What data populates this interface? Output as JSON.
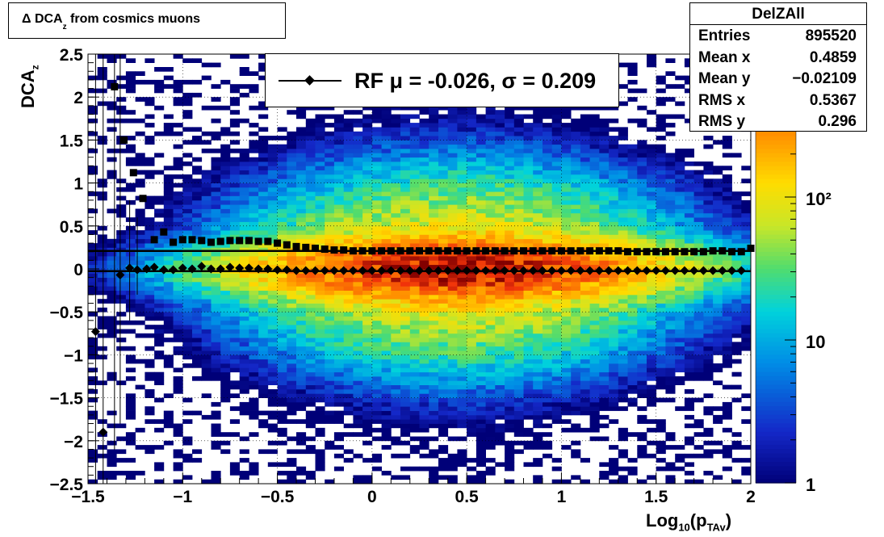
{
  "title": "Δ DCA",
  "title_sub": "z",
  "title_rest": " from cosmics muons",
  "stats": {
    "name": "DelZAll",
    "rows": [
      {
        "label": "Entries",
        "value": "895520"
      },
      {
        "label": "Mean x",
        "value": "0.4859"
      },
      {
        "label": "Mean y",
        "value": "−0.02109"
      },
      {
        "label": "RMS x",
        "value": "0.5367"
      },
      {
        "label": "RMS y",
        "value": "0.296"
      }
    ]
  },
  "legend": {
    "label": "RF μ = -0.026, σ =   0.209"
  },
  "axes": {
    "x_title_main": "Log",
    "x_title_sub1": "10",
    "x_title_mid": "(p",
    "x_title_sub2": "TAv",
    "x_title_end": ")",
    "y_title_main": "DCA",
    "y_title_sub": "z"
  },
  "chart_data": {
    "type": "heatmap",
    "title": "Δ DCAz from cosmics muons",
    "xlabel": "Log10(pTAv)",
    "ylabel": "DCAz",
    "xlim": [
      -1.5,
      2
    ],
    "ylim": [
      -2.5,
      2.5
    ],
    "zscale": "log",
    "zlim": [
      1,
      1000
    ],
    "x_ticks": [
      "−1.5",
      "−1",
      "−0.5",
      "0",
      "0.5",
      "1",
      "1.5",
      "2"
    ],
    "x_tick_values": [
      -1.5,
      -1,
      -0.5,
      0,
      0.5,
      1,
      1.5,
      2
    ],
    "y_ticks": [
      "−2.5",
      "−2",
      "−1.5",
      "−1",
      "−0.5",
      "0",
      "0.5",
      "1",
      "1.5",
      "2",
      "2.5"
    ],
    "y_tick_values": [
      -2.5,
      -2,
      -1.5,
      -1,
      -0.5,
      0,
      0.5,
      1,
      1.5,
      2,
      2.5
    ],
    "z_ticks": [
      {
        "value": 1,
        "label": "1"
      },
      {
        "value": 10,
        "label": "10"
      },
      {
        "value": 100,
        "label": "10²"
      }
    ],
    "grid": true,
    "density_model": {
      "x_center": 0.45,
      "x_sigma": 0.55,
      "y_sigma_core": 0.18,
      "y_sigma_tail": 0.55,
      "peak": 900
    },
    "series": [
      {
        "name": "mean",
        "marker": "diamond",
        "x": [
          -1.46,
          -1.42,
          -1.33,
          -1.28,
          -1.24,
          -1.19,
          -1.15,
          -1.1,
          -1.05,
          -1.0,
          -0.95,
          -0.9,
          -0.85,
          -0.8,
          -0.75,
          -0.7,
          -0.65,
          -0.6,
          -0.55,
          -0.5,
          -0.45,
          -0.4,
          -0.35,
          -0.3,
          -0.25,
          -0.2,
          -0.15,
          -0.1,
          -0.05,
          0.0,
          0.05,
          0.1,
          0.15,
          0.2,
          0.25,
          0.3,
          0.35,
          0.4,
          0.45,
          0.5,
          0.55,
          0.6,
          0.65,
          0.7,
          0.75,
          0.8,
          0.85,
          0.9,
          0.95,
          1.0,
          1.05,
          1.1,
          1.15,
          1.2,
          1.25,
          1.3,
          1.35,
          1.4,
          1.45,
          1.5,
          1.55,
          1.6,
          1.65,
          1.7,
          1.75,
          1.8,
          1.85,
          1.9,
          1.95
        ],
        "y": [
          -0.73,
          -1.9,
          -0.07,
          0.01,
          -0.01,
          0.0,
          0.02,
          -0.01,
          -0.01,
          0.01,
          0.0,
          0.03,
          0.0,
          0.0,
          0.02,
          0.01,
          0.01,
          0.0,
          0.0,
          -0.01,
          -0.01,
          -0.02,
          -0.02,
          -0.02,
          -0.02,
          -0.02,
          -0.02,
          -0.02,
          -0.02,
          -0.02,
          -0.02,
          -0.02,
          -0.02,
          -0.02,
          -0.02,
          -0.02,
          -0.02,
          -0.02,
          -0.02,
          -0.02,
          -0.02,
          -0.02,
          -0.02,
          -0.02,
          -0.02,
          -0.02,
          -0.02,
          -0.02,
          -0.02,
          -0.02,
          -0.02,
          -0.02,
          -0.02,
          -0.02,
          -0.02,
          -0.02,
          -0.02,
          -0.02,
          -0.02,
          -0.02,
          -0.02,
          -0.02,
          -0.02,
          -0.02,
          -0.02,
          -0.02,
          -0.02,
          -0.02,
          -0.02
        ]
      },
      {
        "name": "rms",
        "marker": "square",
        "x": [
          -1.36,
          -1.31,
          -1.26,
          -1.21,
          -1.15,
          -1.1,
          -1.05,
          -1.0,
          -0.95,
          -0.9,
          -0.85,
          -0.8,
          -0.75,
          -0.7,
          -0.65,
          -0.6,
          -0.55,
          -0.5,
          -0.45,
          -0.4,
          -0.35,
          -0.3,
          -0.25,
          -0.2,
          -0.15,
          -0.1,
          -0.05,
          0.0,
          0.05,
          0.1,
          0.15,
          0.2,
          0.25,
          0.3,
          0.35,
          0.4,
          0.45,
          0.5,
          0.55,
          0.6,
          0.65,
          0.7,
          0.75,
          0.8,
          0.85,
          0.9,
          0.95,
          1.0,
          1.05,
          1.1,
          1.15,
          1.2,
          1.25,
          1.3,
          1.35,
          1.4,
          1.45,
          1.5,
          1.55,
          1.6,
          1.65,
          1.7,
          1.75,
          1.8,
          1.85,
          1.9,
          1.95,
          2.0
        ],
        "y": [
          2.12,
          1.5,
          1.12,
          0.82,
          0.34,
          0.43,
          0.31,
          0.34,
          0.34,
          0.33,
          0.31,
          0.32,
          0.33,
          0.33,
          0.33,
          0.32,
          0.32,
          0.3,
          0.28,
          0.26,
          0.25,
          0.24,
          0.23,
          0.22,
          0.22,
          0.21,
          0.21,
          0.21,
          0.21,
          0.21,
          0.21,
          0.21,
          0.21,
          0.21,
          0.21,
          0.21,
          0.21,
          0.21,
          0.21,
          0.21,
          0.21,
          0.21,
          0.21,
          0.21,
          0.21,
          0.21,
          0.21,
          0.21,
          0.21,
          0.21,
          0.21,
          0.21,
          0.21,
          0.21,
          0.2,
          0.2,
          0.2,
          0.2,
          0.2,
          0.2,
          0.2,
          0.2,
          0.2,
          0.21,
          0.21,
          0.2,
          0.2,
          0.24
        ]
      },
      {
        "name": "fit-mean",
        "marker": "line",
        "x": [
          -1.5,
          2.0
        ],
        "y": [
          -0.026,
          -0.026
        ]
      },
      {
        "name": "fit-sigma",
        "marker": "line",
        "x": [
          -1.5,
          2.0
        ],
        "y": [
          0.209,
          0.209
        ]
      }
    ],
    "left_error_bars": {
      "x": [
        -1.46,
        -1.42,
        -1.36,
        -1.33,
        -1.28,
        -1.24
      ],
      "ylow": [
        -2.5,
        -2.5,
        -2.1,
        -1.8,
        -0.6,
        -0.3
      ],
      "yhigh": [
        2.5,
        2.5,
        2.5,
        2.5,
        0.8,
        0.6
      ]
    }
  }
}
